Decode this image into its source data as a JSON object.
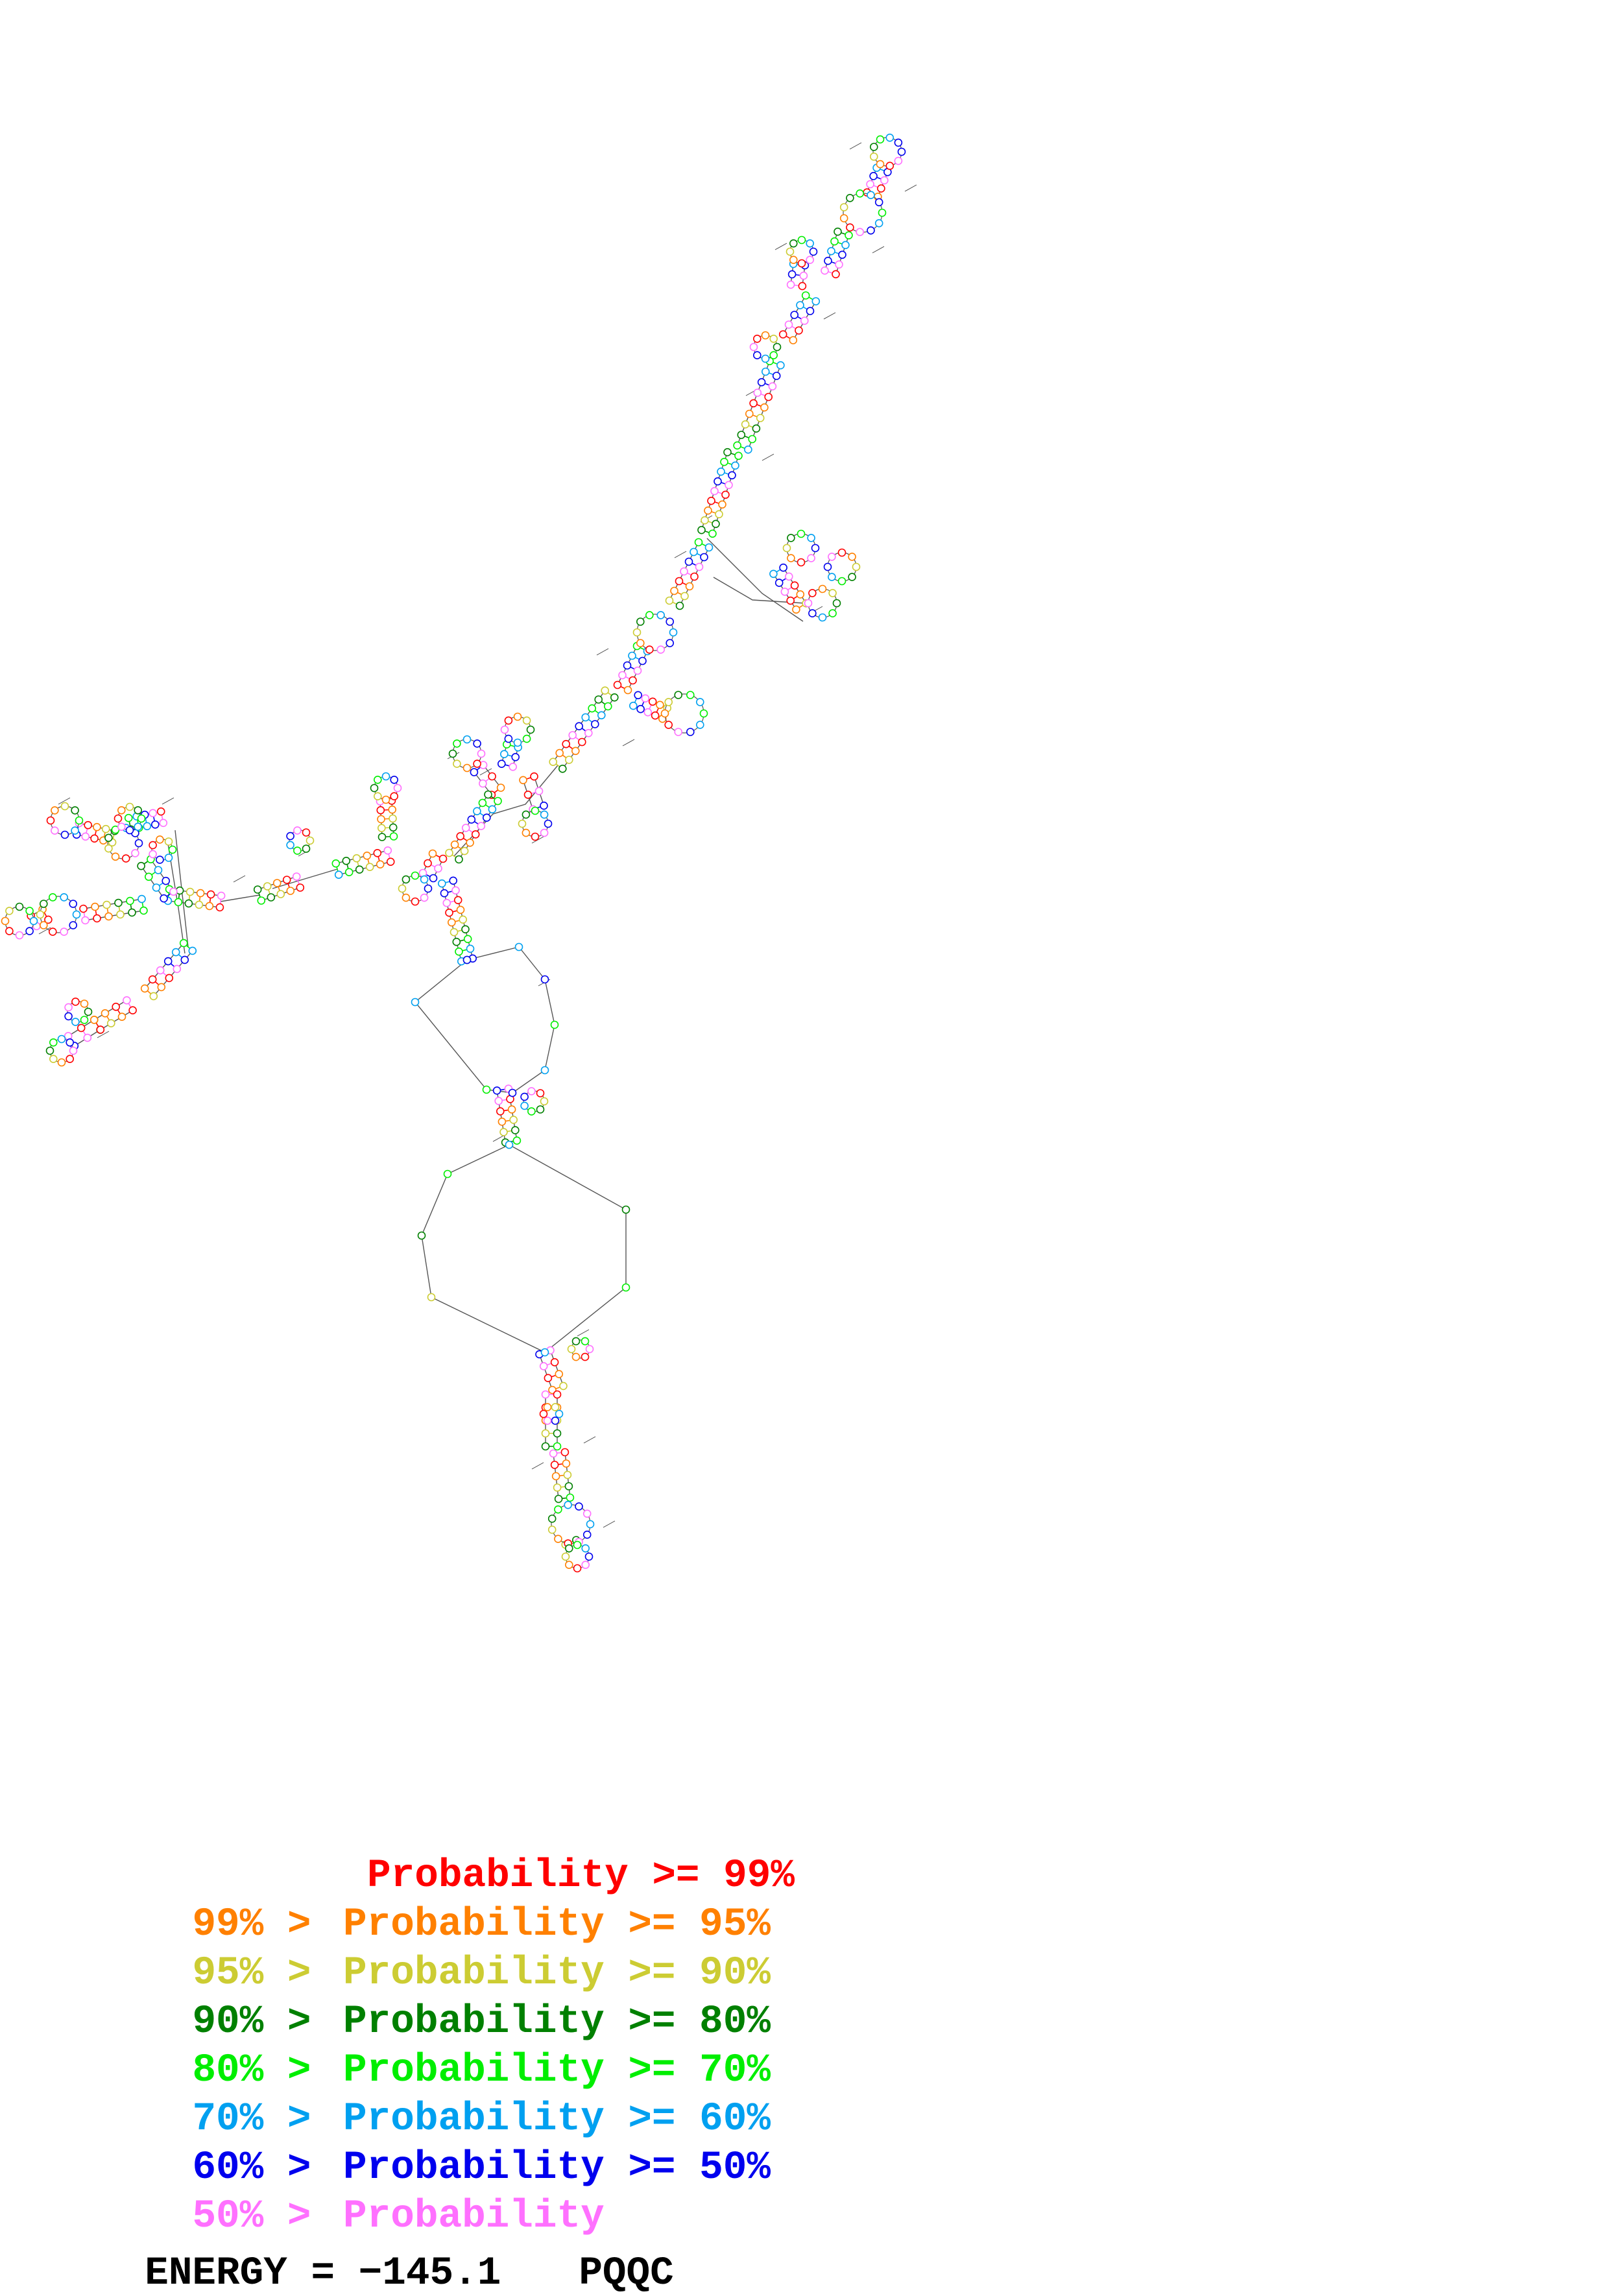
{
  "legend": [
    {
      "prefix": "",
      "label": "Probability",
      "suffix": ">= 99%",
      "color": "#ff0000"
    },
    {
      "prefix": "99% >",
      "label": "Probability",
      "suffix": ">= 95%",
      "color": "#ff8000"
    },
    {
      "prefix": "95% >",
      "label": "Probability",
      "suffix": ">= 90%",
      "color": "#cccc33"
    },
    {
      "prefix": "90% >",
      "label": "Probability",
      "suffix": ">= 80%",
      "color": "#008000"
    },
    {
      "prefix": "80% >",
      "label": "Probability",
      "suffix": ">= 70%",
      "color": "#00ee00"
    },
    {
      "prefix": "70% >",
      "label": "Probability",
      "suffix": ">= 60%",
      "color": "#00a0f0"
    },
    {
      "prefix": "60% >",
      "label": "Probability",
      "suffix": ">= 50%",
      "color": "#0000ee"
    },
    {
      "prefix": "50% >",
      "label": "Probability",
      "suffix": "",
      "color": "#ff70ff"
    }
  ],
  "energy": {
    "label": "ENERGY = −145.1",
    "name": "PQQC"
  },
  "colors": {
    "backbone": "#555555",
    "base_fill": "#ffffff"
  }
}
